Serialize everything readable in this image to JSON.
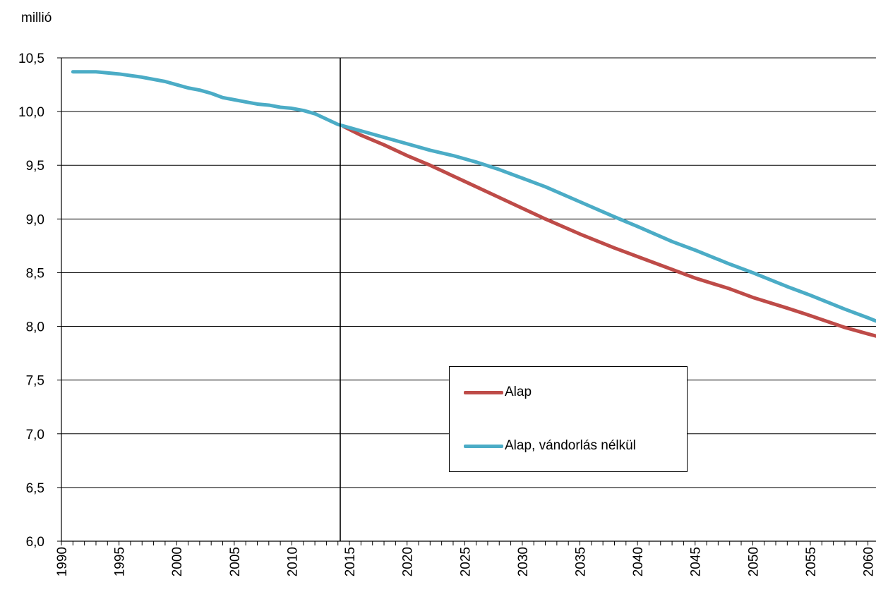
{
  "chart_data": {
    "type": "line",
    "unit_label": "millió",
    "xlim": [
      1990,
      2060.7
    ],
    "ylim": [
      6.0,
      10.5
    ],
    "x_ticks": [
      1990,
      1995,
      2000,
      2005,
      2010,
      2015,
      2020,
      2025,
      2030,
      2035,
      2040,
      2045,
      2050,
      2055,
      2060
    ],
    "y_ticks": [
      "6,0",
      "6,5",
      "7,0",
      "7,5",
      "8,0",
      "8,5",
      "9,0",
      "9,5",
      "10,0",
      "10,5"
    ],
    "y_tick_values": [
      6.0,
      6.5,
      7.0,
      7.5,
      8.0,
      8.5,
      9.0,
      9.5,
      10.0,
      10.5
    ],
    "grid": "horizontal",
    "vertical_marker_x": 2014.2,
    "legend_position": "lower-center",
    "series": [
      {
        "name": "Alap",
        "color": "#be4b48",
        "x": [
          2014.5,
          2016,
          2018,
          2020,
          2022,
          2025,
          2028,
          2030,
          2032,
          2035,
          2038,
          2040,
          2043,
          2045,
          2048,
          2050,
          2053,
          2055,
          2058,
          2060,
          2060.7
        ],
        "y": [
          9.86,
          9.78,
          9.69,
          9.59,
          9.5,
          9.35,
          9.2,
          9.1,
          9.0,
          8.86,
          8.73,
          8.65,
          8.53,
          8.45,
          8.35,
          8.27,
          8.17,
          8.1,
          7.99,
          7.93,
          7.91
        ]
      },
      {
        "name": "Alap, vándorlás nélkül",
        "color": "#4bacc6",
        "x": [
          1991,
          1993,
          1995,
          1997,
          1999,
          2000,
          2001,
          2002,
          2003,
          2004,
          2005,
          2006,
          2007,
          2008,
          2009,
          2010,
          2011,
          2012,
          2013,
          2014,
          2015,
          2016,
          2018,
          2020,
          2022,
          2024,
          2026,
          2028,
          2030,
          2032,
          2035,
          2038,
          2040,
          2043,
          2045,
          2048,
          2050,
          2053,
          2055,
          2058,
          2060,
          2060.7
        ],
        "y": [
          10.37,
          10.37,
          10.35,
          10.32,
          10.28,
          10.25,
          10.22,
          10.2,
          10.17,
          10.13,
          10.11,
          10.09,
          10.07,
          10.06,
          10.04,
          10.03,
          10.01,
          9.98,
          9.93,
          9.88,
          9.85,
          9.82,
          9.76,
          9.7,
          9.64,
          9.59,
          9.53,
          9.46,
          9.38,
          9.3,
          9.16,
          9.02,
          8.93,
          8.79,
          8.71,
          8.58,
          8.5,
          8.37,
          8.29,
          8.16,
          8.08,
          8.05
        ]
      }
    ]
  }
}
